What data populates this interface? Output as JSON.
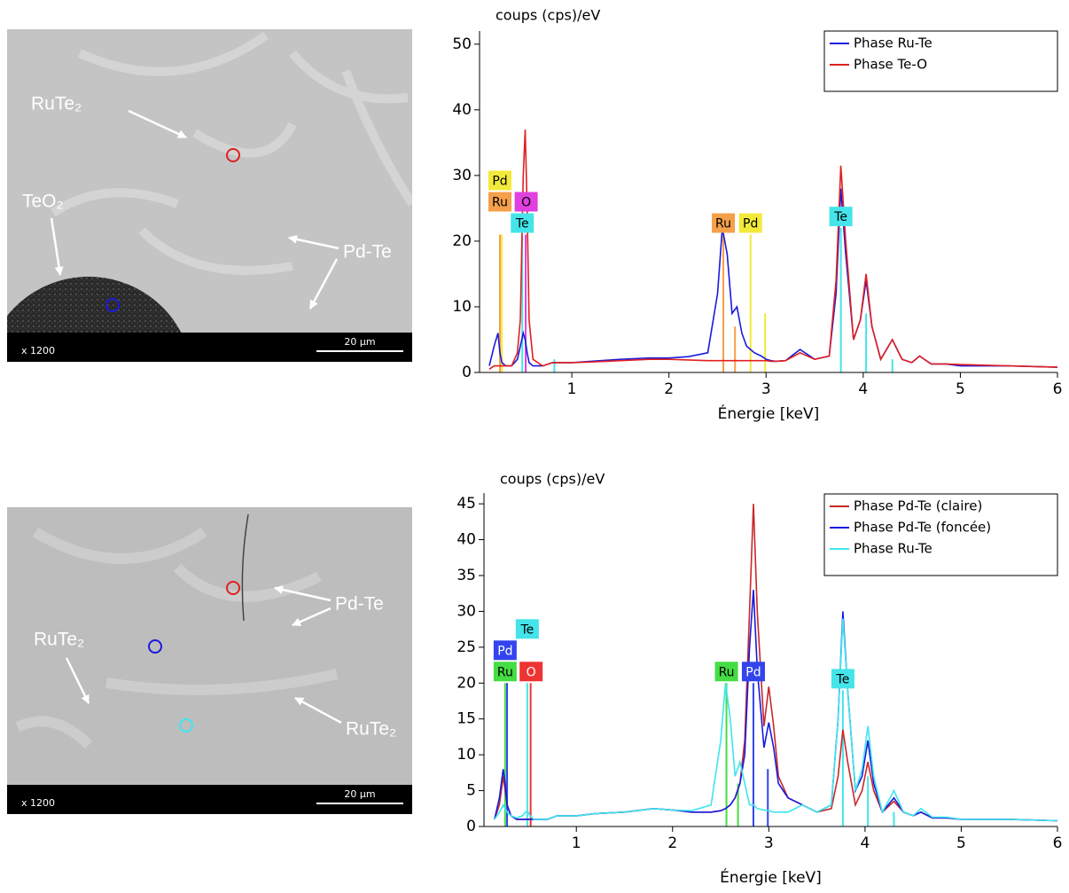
{
  "images": [
    {
      "labels": [
        "RuTe₂",
        "TeO₂",
        "Pd-Te"
      ],
      "magnification": "x 1200",
      "scale_bar": "20 µm"
    },
    {
      "labels": [
        "Pd-Te",
        "RuTe₂",
        "RuTe₂"
      ],
      "magnification": "x 1200",
      "scale_bar": "20 µm"
    }
  ],
  "chart_data": [
    {
      "type": "line",
      "y_label": "coups (cps)/eV",
      "x_label": "Énergie [keV]",
      "xlim": [
        0.05,
        6
      ],
      "xticks": [
        1,
        2,
        3,
        4,
        5,
        6
      ],
      "ylim": [
        0,
        52
      ],
      "yticks": [
        0,
        10,
        20,
        30,
        40,
        50
      ],
      "legend": "top-right",
      "x": [
        0.15,
        0.2,
        0.24,
        0.26,
        0.28,
        0.32,
        0.38,
        0.44,
        0.47,
        0.5,
        0.52,
        0.54,
        0.56,
        0.6,
        0.7,
        0.8,
        1.0,
        1.2,
        1.5,
        1.8,
        2.0,
        2.2,
        2.4,
        2.5,
        2.55,
        2.6,
        2.65,
        2.7,
        2.75,
        2.8,
        2.84,
        2.88,
        2.95,
        3.0,
        3.05,
        3.1,
        3.2,
        3.35,
        3.5,
        3.65,
        3.72,
        3.77,
        3.82,
        3.9,
        3.97,
        4.03,
        4.09,
        4.18,
        4.3,
        4.4,
        4.5,
        4.58,
        4.7,
        4.85,
        5.0,
        5.5,
        6.0
      ],
      "series": [
        {
          "name": "Phase Ru-Te",
          "color": "#1a1adc",
          "values": [
            1,
            4,
            6,
            3,
            1.5,
            1,
            1,
            2,
            4,
            6,
            5,
            3,
            1.5,
            1,
            1,
            1.5,
            1.5,
            1.7,
            2,
            2.2,
            2.2,
            2.4,
            3,
            12,
            22,
            18,
            9,
            10,
            6,
            4,
            3.5,
            3,
            2.5,
            2,
            1.8,
            1.7,
            1.8,
            3.5,
            2,
            2.5,
            12,
            28,
            18,
            5,
            8,
            14,
            7,
            2,
            5,
            2,
            1.5,
            2.5,
            1.3,
            1.3,
            1,
            1,
            0.8
          ]
        },
        {
          "name": "Phase Te-O",
          "color": "#e02020",
          "values": [
            0.5,
            1,
            1,
            1,
            1,
            1,
            1,
            3,
            8,
            30,
            37,
            25,
            8,
            2,
            1,
            1.5,
            1.5,
            1.6,
            1.8,
            2,
            2,
            1.9,
            1.8,
            1.8,
            1.8,
            1.8,
            1.8,
            1.8,
            1.8,
            1.8,
            1.8,
            1.8,
            1.8,
            1.8,
            1.7,
            1.7,
            1.8,
            3,
            2,
            2.5,
            14,
            31.5,
            20,
            5,
            8,
            15,
            7,
            2,
            5,
            2,
            1.5,
            2.5,
            1.3,
            1.3,
            1.2,
            1,
            0.8
          ]
        }
      ],
      "element_colors": {
        "Ru": "#f5a04a",
        "Pd": "#f2ea3a",
        "Te": "#44e4ea",
        "O": "#e040e0"
      },
      "element_lines": [
        {
          "element": "Ru",
          "energy": 0.26,
          "height": 21
        },
        {
          "element": "Pd",
          "energy": 0.28,
          "height": 21
        },
        {
          "element": "Te",
          "energy": 0.49,
          "height": 21
        },
        {
          "element": "O",
          "energy": 0.525,
          "height": 21
        },
        {
          "element": "Te",
          "energy": 0.82,
          "height": 2
        },
        {
          "element": "Ru",
          "energy": 2.56,
          "height": 21
        },
        {
          "element": "Ru",
          "energy": 2.68,
          "height": 7
        },
        {
          "element": "Pd",
          "energy": 2.84,
          "height": 21
        },
        {
          "element": "Pd",
          "energy": 2.99,
          "height": 9
        },
        {
          "element": "Te",
          "energy": 3.77,
          "height": 22
        },
        {
          "element": "Te",
          "energy": 4.03,
          "height": 9
        },
        {
          "element": "Te",
          "energy": 4.3,
          "height": 2
        }
      ],
      "element_labels": [
        {
          "text": "Te",
          "energy": 0.49
        },
        {
          "text": "O",
          "energy": 0.53
        },
        {
          "text": "Ru",
          "energy": 0.26
        },
        {
          "text": "Pd",
          "energy": 0.26
        },
        {
          "text": "Ru",
          "energy": 2.56
        },
        {
          "text": "Pd",
          "energy": 2.84
        },
        {
          "text": "Te",
          "energy": 3.77
        }
      ]
    },
    {
      "type": "line",
      "y_label": "coups (cps)/eV",
      "x_label": "Énergie [keV]",
      "xlim": [
        0.04,
        6
      ],
      "xticks": [
        1,
        2,
        3,
        4,
        5,
        6
      ],
      "ylim": [
        0,
        46.5
      ],
      "yticks": [
        0,
        5,
        10,
        15,
        20,
        25,
        30,
        35,
        40,
        45
      ],
      "legend": "top-right",
      "x": [
        0.15,
        0.2,
        0.24,
        0.26,
        0.28,
        0.32,
        0.38,
        0.44,
        0.47,
        0.5,
        0.52,
        0.54,
        0.56,
        0.6,
        0.7,
        0.8,
        1.0,
        1.2,
        1.5,
        1.8,
        2.0,
        2.2,
        2.4,
        2.5,
        2.55,
        2.6,
        2.65,
        2.7,
        2.75,
        2.8,
        2.84,
        2.88,
        2.95,
        3.0,
        3.05,
        3.1,
        3.2,
        3.35,
        3.5,
        3.65,
        3.72,
        3.77,
        3.82,
        3.9,
        3.97,
        4.03,
        4.09,
        4.18,
        4.3,
        4.4,
        4.5,
        4.58,
        4.7,
        4.85,
        5.0,
        5.5,
        6.0
      ],
      "series": [
        {
          "name": "Phase Pd-Te (claire)",
          "color": "#c8282a",
          "values": [
            1,
            3,
            7,
            5,
            3,
            1.5,
            1,
            1,
            1,
            1,
            1,
            1,
            1,
            1,
            1,
            1.5,
            1.5,
            1.8,
            2,
            2.5,
            2.3,
            2,
            2,
            2.2,
            2.5,
            3,
            4,
            6,
            12,
            30,
            45,
            30,
            14,
            19.5,
            14,
            7,
            4,
            3,
            2,
            2.5,
            7,
            13.5,
            9,
            3,
            5,
            9,
            5,
            2,
            3.5,
            2,
            1.5,
            2,
            1.2,
            1.2,
            1,
            1,
            0.8
          ]
        },
        {
          "name": "Phase Pd-Te (foncée)",
          "color": "#1a1adc",
          "values": [
            1,
            4,
            8,
            6,
            3,
            1.5,
            1,
            1,
            1,
            1,
            1,
            1,
            1,
            1,
            1,
            1.5,
            1.5,
            1.8,
            2,
            2.5,
            2.3,
            2,
            2,
            2.2,
            2.5,
            3,
            4,
            6,
            10,
            25,
            33,
            22,
            11,
            14.5,
            11,
            6,
            4,
            3,
            2,
            3,
            15,
            30,
            19,
            5,
            7,
            12,
            6,
            2,
            4,
            2,
            1.5,
            2,
            1.2,
            1.2,
            1,
            1,
            0.8
          ]
        },
        {
          "name": "Phase Ru-Te",
          "color": "#3ee6ee",
          "values": [
            1,
            2,
            3,
            2.5,
            2,
            1.5,
            1.2,
            1.5,
            2,
            2,
            1.5,
            1.2,
            1,
            1,
            1,
            1.5,
            1.5,
            1.8,
            2,
            2.5,
            2.3,
            2.2,
            3,
            12,
            20,
            15,
            7,
            9,
            6,
            3,
            3,
            2.5,
            2.3,
            2.2,
            2,
            2,
            2,
            3,
            2,
            3,
            15,
            29,
            19,
            5,
            8,
            14,
            7,
            2,
            5,
            2,
            1.5,
            2.5,
            1.3,
            1.3,
            1,
            1,
            0.8
          ]
        }
      ],
      "element_colors": {
        "Ru": "#44dd44",
        "Pd": "#3344ee",
        "Te": "#44e4ea",
        "O": "#ee3333"
      },
      "element_lines": [
        {
          "element": "Ru",
          "energy": 0.26,
          "height": 20
        },
        {
          "element": "Pd",
          "energy": 0.28,
          "height": 20
        },
        {
          "element": "Te",
          "energy": 0.49,
          "height": 20
        },
        {
          "element": "O",
          "energy": 0.525,
          "height": 20
        },
        {
          "element": "Ru",
          "energy": 2.56,
          "height": 20
        },
        {
          "element": "Ru",
          "energy": 2.68,
          "height": 6
        },
        {
          "element": "Pd",
          "energy": 2.84,
          "height": 20
        },
        {
          "element": "Pd",
          "energy": 2.99,
          "height": 8
        },
        {
          "element": "Te",
          "energy": 3.77,
          "height": 19
        },
        {
          "element": "Te",
          "energy": 4.03,
          "height": 7
        },
        {
          "element": "Te",
          "energy": 4.3,
          "height": 2
        }
      ],
      "element_labels": [
        {
          "text": "Ru",
          "energy": 0.26
        },
        {
          "text": "O",
          "energy": 0.53
        },
        {
          "text": "Pd",
          "energy": 0.26
        },
        {
          "text": "Te",
          "energy": 0.49
        },
        {
          "text": "Ru",
          "energy": 2.56
        },
        {
          "text": "Pd",
          "energy": 2.84
        },
        {
          "text": "Te",
          "energy": 3.77
        }
      ]
    }
  ]
}
